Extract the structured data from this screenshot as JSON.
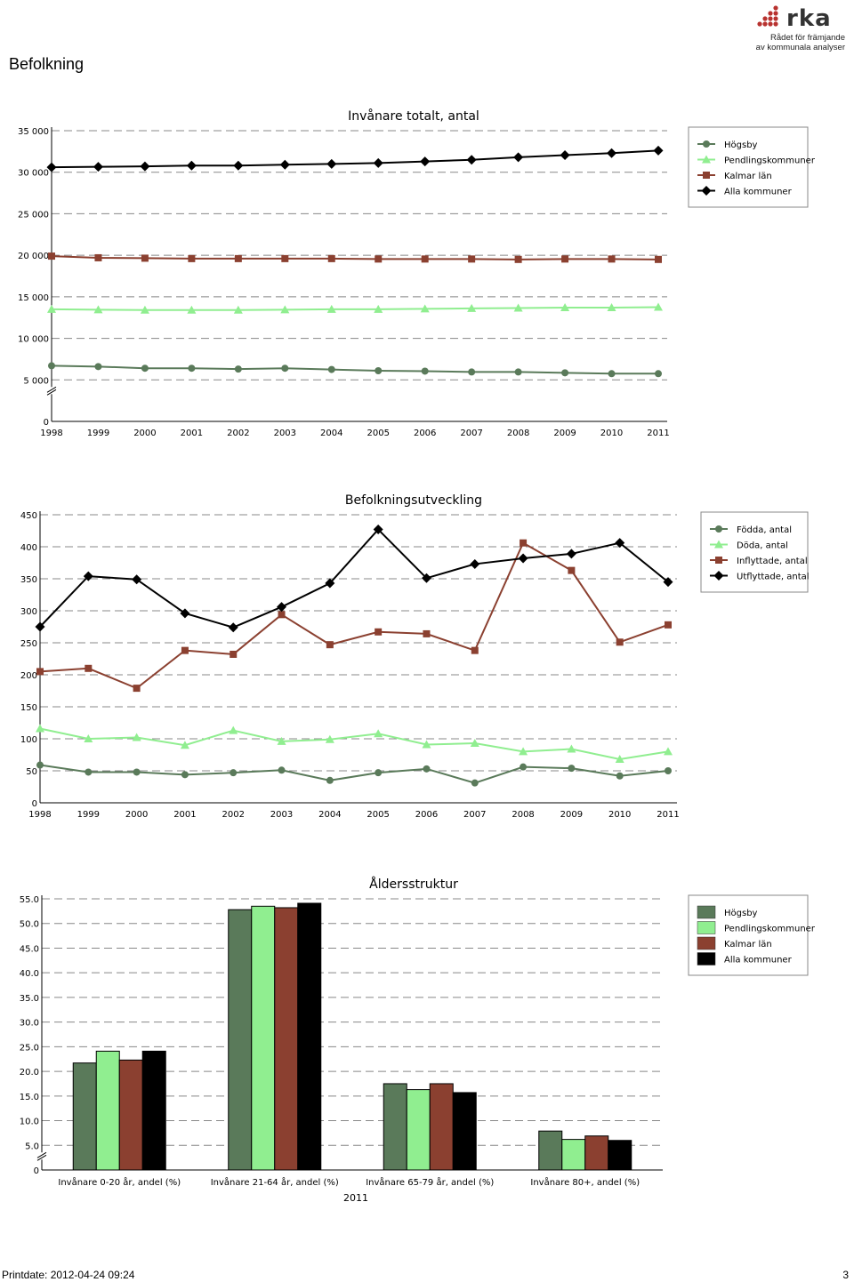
{
  "page": {
    "title": "Befolkning",
    "footer_left": "Printdate: 2012-04-24 09:24",
    "footer_right": "3"
  },
  "logo": {
    "word": "rka",
    "line1": "Rådet för främjande",
    "line2": "av kommunala analyser",
    "color": "#b8322f"
  },
  "colors": {
    "hogsby": "#5a7a5a",
    "pendling": "#90ee90",
    "kalmar": "#8b4030",
    "alla": "#000000"
  },
  "chart_data": [
    {
      "type": "line",
      "title": "Invånare totalt, antal",
      "categories": [
        "1998",
        "1999",
        "2000",
        "2001",
        "2002",
        "2003",
        "2004",
        "2005",
        "2006",
        "2007",
        "2008",
        "2009",
        "2010",
        "2011"
      ],
      "y_ticks": [
        "0",
        "5 000",
        "10 000",
        "15 000",
        "20 000",
        "25 000",
        "30 000",
        "35 000"
      ],
      "ylim": [
        0,
        35000
      ],
      "axis_break": true,
      "grid": true,
      "legend_position": "top-right",
      "series": [
        {
          "name": "Högsby",
          "marker": "circle",
          "values": [
            6700,
            6600,
            6400,
            6400,
            6300,
            6400,
            6250,
            6100,
            6050,
            5950,
            5950,
            5850,
            5750,
            5750
          ]
        },
        {
          "name": "Pendlingskommuner",
          "marker": "triangle",
          "values": [
            13500,
            13450,
            13400,
            13400,
            13400,
            13450,
            13500,
            13500,
            13550,
            13600,
            13650,
            13700,
            13700,
            13750
          ]
        },
        {
          "name": "Kalmar län",
          "marker": "square",
          "values": [
            19900,
            19700,
            19650,
            19600,
            19600,
            19600,
            19600,
            19550,
            19550,
            19550,
            19500,
            19550,
            19550,
            19500
          ]
        },
        {
          "name": "Alla kommuner",
          "marker": "diamond",
          "values": [
            30600,
            30650,
            30700,
            30800,
            30800,
            30900,
            31000,
            31100,
            31300,
            31500,
            31800,
            32050,
            32300,
            32600
          ]
        }
      ]
    },
    {
      "type": "line",
      "title": "Befolkningsutveckling",
      "categories": [
        "1998",
        "1999",
        "2000",
        "2001",
        "2002",
        "2003",
        "2004",
        "2005",
        "2006",
        "2007",
        "2008",
        "2009",
        "2010",
        "2011"
      ],
      "y_ticks": [
        "0",
        "50",
        "100",
        "150",
        "200",
        "250",
        "300",
        "350",
        "400",
        "450"
      ],
      "ylim": [
        0,
        450
      ],
      "grid": true,
      "legend_position": "top-right",
      "series": [
        {
          "name": "Födda, antal",
          "marker": "circle",
          "values": [
            59,
            48,
            48,
            44,
            47,
            51,
            35,
            47,
            53,
            31,
            56,
            54,
            42,
            50
          ]
        },
        {
          "name": "Döda, antal",
          "marker": "triangle",
          "values": [
            116,
            100,
            102,
            90,
            113,
            96,
            99,
            108,
            91,
            93,
            80,
            84,
            68,
            80
          ]
        },
        {
          "name": "Inflyttade, antal",
          "marker": "square",
          "values": [
            205,
            210,
            179,
            238,
            232,
            294,
            247,
            267,
            264,
            238,
            406,
            363,
            251,
            278
          ]
        },
        {
          "name": "Utflyttade, antal",
          "marker": "diamond",
          "values": [
            275,
            354,
            349,
            296,
            274,
            306,
            343,
            427,
            351,
            373,
            382,
            389,
            406,
            345
          ]
        }
      ]
    },
    {
      "type": "bar",
      "title": "Åldersstruktur",
      "xlabel": "2011",
      "categories": [
        "Invånare 0-20 år, andel (%)",
        "Invånare 21-64 år, andel (%)",
        "Invånare 65-79 år, andel (%)",
        "Invånare 80+, andel (%)"
      ],
      "y_ticks": [
        "0",
        "5.0",
        "10.0",
        "15.0",
        "20.0",
        "25.0",
        "30.0",
        "35.0",
        "40.0",
        "45.0",
        "50.0",
        "55.0"
      ],
      "ylim": [
        0,
        55
      ],
      "axis_break": true,
      "grid": true,
      "legend_position": "top-right",
      "series": [
        {
          "name": "Högsby",
          "values": [
            21.7,
            52.8,
            17.5,
            7.9
          ]
        },
        {
          "name": "Pendlingskommuner",
          "values": [
            24.1,
            53.5,
            16.3,
            6.2
          ]
        },
        {
          "name": "Kalmar län",
          "values": [
            22.3,
            53.2,
            17.5,
            6.9
          ]
        },
        {
          "name": "Alla kommuner",
          "values": [
            24.1,
            54.1,
            15.7,
            6.0
          ]
        }
      ]
    }
  ]
}
